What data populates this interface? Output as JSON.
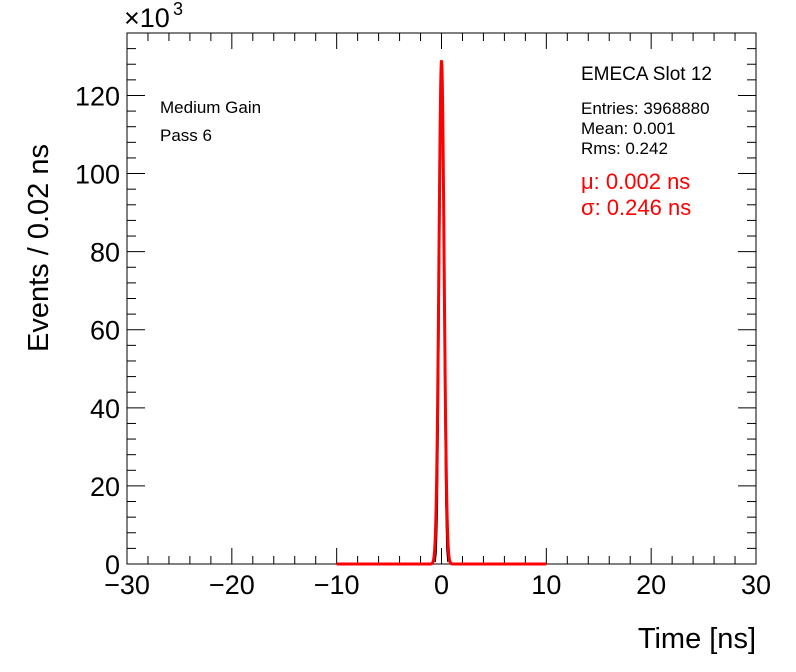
{
  "colors": {
    "histogram": "#000000",
    "fit": "#ff0000",
    "fit_text": "#ff0000"
  },
  "chart_data": {
    "type": "line",
    "xlabel": "Time [ns]",
    "ylabel": "Events / 0.02 ns",
    "y_exponent_label": "×10",
    "y_exponent": "3",
    "xlim": [
      -30,
      30
    ],
    "ylim": [
      0,
      136
    ],
    "x_ticks": [
      -30,
      -20,
      -10,
      0,
      10,
      20,
      30
    ],
    "x_tick_labels": [
      "−30",
      "−20",
      "−10",
      "0",
      "10",
      "20",
      "30"
    ],
    "y_ticks": [
      0,
      20,
      40,
      60,
      80,
      100,
      120
    ],
    "y_tick_labels": [
      "0",
      "20",
      "40",
      "60",
      "80",
      "100",
      "120"
    ],
    "grid": false,
    "annotations": {
      "gain": "Medium Gain",
      "pass": "Pass 6",
      "slot": "EMECA Slot 12",
      "entries": "Entries: 3968880",
      "mean": "Mean: 0.001",
      "rms": "Rms: 0.242",
      "fit_mu": "μ: 0.002 ns",
      "fit_sigma": "σ: 0.246 ns"
    },
    "series": [
      {
        "kind": "histogram",
        "x": [
          -0.6,
          -0.5,
          -0.4,
          -0.3,
          -0.2,
          -0.1,
          -0.05,
          0.0,
          0.05,
          0.1,
          0.2,
          0.3,
          0.4,
          0.5,
          0.6
        ],
        "values": [
          0.5,
          3,
          12,
          35,
          70,
          102,
          120,
          129,
          124,
          110,
          78,
          42,
          16,
          4,
          0.5
        ]
      },
      {
        "kind": "gaussian_fit",
        "range": [
          -10,
          10
        ],
        "mu": 0.002,
        "sigma": 0.246,
        "amplitude": 129
      }
    ]
  }
}
